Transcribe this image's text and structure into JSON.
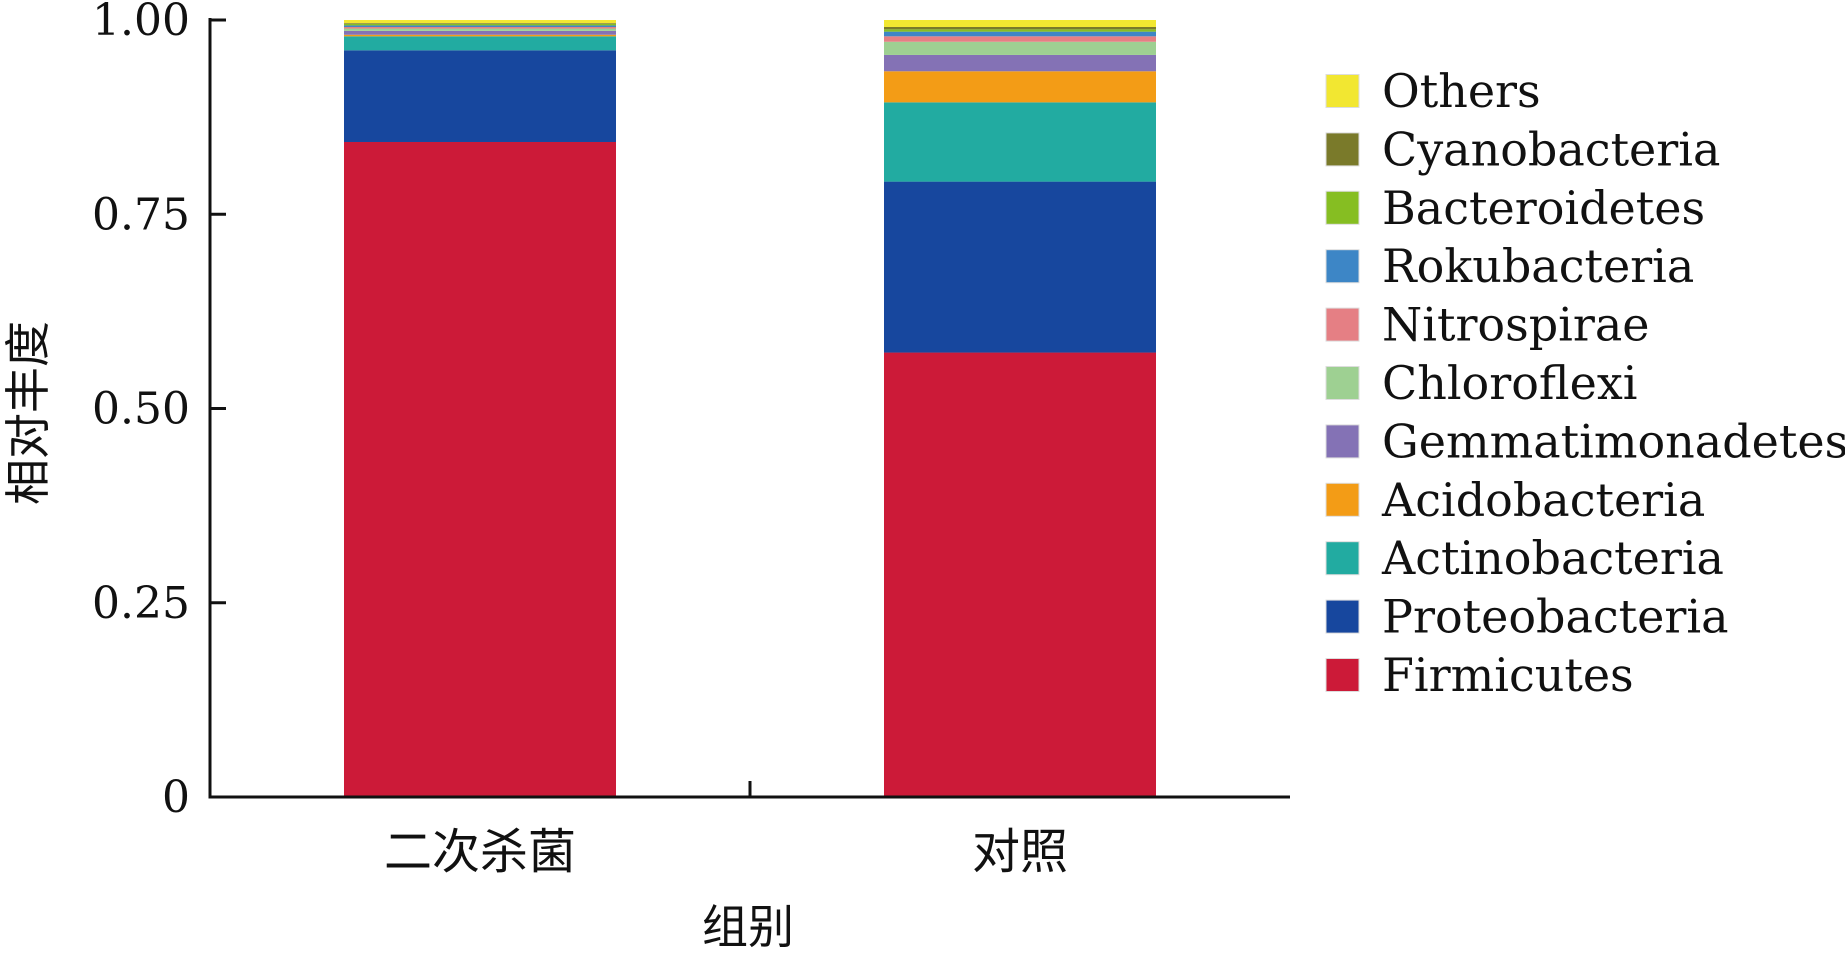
{
  "chart_data": {
    "type": "bar",
    "stacked": true,
    "xlabel": "组别",
    "ylabel": "相对丰度",
    "ylim": [
      0,
      1.0
    ],
    "yticks": [
      0,
      0.25,
      0.5,
      0.75,
      1.0
    ],
    "ytick_labels": [
      "0",
      "0.25",
      "0.50",
      "0.75",
      "1.00"
    ],
    "categories": [
      "二次杀菌",
      "对照"
    ],
    "grid": false,
    "legend_position": "right",
    "series": [
      {
        "name": "Firmicutes",
        "color": "#CC1A38",
        "values": [
          0.843,
          0.572
        ]
      },
      {
        "name": "Proteobacteria",
        "color": "#17479E",
        "values": [
          0.118,
          0.22
        ]
      },
      {
        "name": "Actinobacteria",
        "color": "#22ABA1",
        "values": [
          0.018,
          0.102
        ]
      },
      {
        "name": "Acidobacteria",
        "color": "#F39C16",
        "values": [
          0.002,
          0.04
        ]
      },
      {
        "name": "Gemmatimonadetes",
        "color": "#8472B5",
        "values": [
          0.005,
          0.021
        ]
      },
      {
        "name": "Chloroflexi",
        "color": "#9ED092",
        "values": [
          0.003,
          0.017
        ]
      },
      {
        "name": "Nitrospirae",
        "color": "#E57F84",
        "values": [
          0.002,
          0.007
        ]
      },
      {
        "name": "Rokubacteria",
        "color": "#3D86C6",
        "values": [
          0.002,
          0.006
        ]
      },
      {
        "name": "Bacteroidetes",
        "color": "#86BE22",
        "values": [
          0.002,
          0.003
        ]
      },
      {
        "name": "Cyanobacteria",
        "color": "#7A7A2A",
        "values": [
          0.001,
          0.003
        ]
      },
      {
        "name": "Others",
        "color": "#F2E731",
        "values": [
          0.004,
          0.009
        ]
      }
    ]
  }
}
